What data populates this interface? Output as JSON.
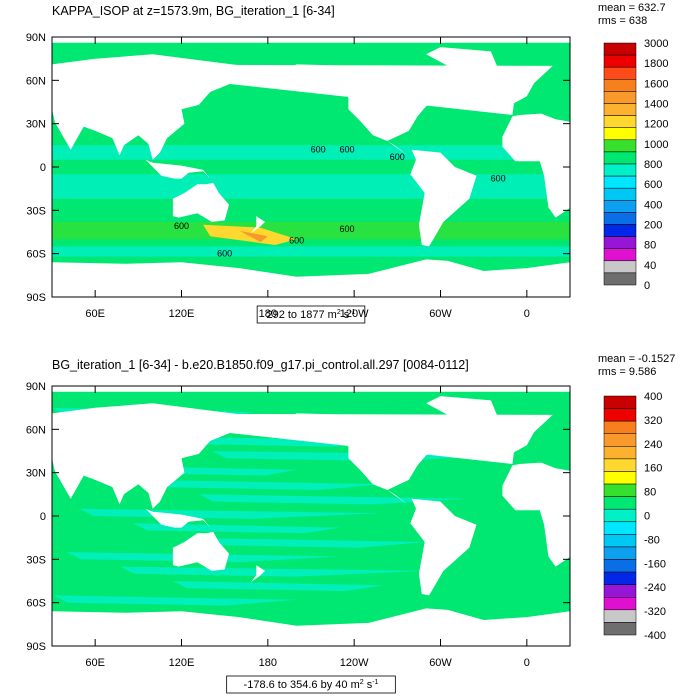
{
  "chart_data": [
    {
      "type": "heatmap",
      "title": "KAPPA_ISOP at z=1573.9m, BG_iteration_1 [6-34]",
      "stats": [
        "mean = 632.7",
        "rms = 638"
      ],
      "range_label": "292 to 1877",
      "range_units": "m",
      "x_ticks": [
        "60E",
        "120E",
        "180",
        "120W",
        "60W",
        "0"
      ],
      "y_ticks": [
        "90N",
        "60N",
        "30N",
        "0",
        "30S",
        "60S",
        "90S"
      ],
      "contour_labels": [
        "600",
        "600",
        "600",
        "600",
        "600",
        "600",
        "600",
        "600"
      ],
      "colorbar": {
        "labels": [
          "3000",
          "1800",
          "1600",
          "1400",
          "1200",
          "1000",
          "800",
          "600",
          "400",
          "200",
          "80",
          "40",
          "0"
        ],
        "colors": [
          "#c80000",
          "#ee0000",
          "#ff4a1a",
          "#f77f1e",
          "#f9982b",
          "#fdb22f",
          "#ffd82f",
          "#ffff00",
          "#38e02e",
          "#00e871",
          "#00f0c8",
          "#00e6ff",
          "#00c8f5",
          "#0ea0f0",
          "#0a6ee6",
          "#0028e6",
          "#9615d6",
          "#e010d0",
          "#c8c8c8",
          "#6e6e6e"
        ]
      },
      "colors": {
        "ocean": "#00e871",
        "ocean_alt": "#00f0c8",
        "land": "#ffffff"
      }
    },
    {
      "type": "heatmap",
      "title": "BG_iteration_1 [6-34] - b.e20.B1850.f09_g17.pi_control.all.297 [0084-0112]",
      "stats": [
        "mean = -0.1527",
        "rms = 9.586"
      ],
      "range_label": "-178.6 to 354.6 by 40",
      "range_units": "m",
      "x_ticks": [
        "60E",
        "120E",
        "180",
        "120W",
        "60W",
        "0"
      ],
      "y_ticks": [
        "90N",
        "60N",
        "30N",
        "0",
        "30S",
        "60S",
        "90S"
      ],
      "colorbar": {
        "labels": [
          "400",
          "320",
          "240",
          "160",
          "80",
          "0",
          "-80",
          "-160",
          "-240",
          "-320",
          "-400"
        ],
        "colors": [
          "#c80000",
          "#ee0000",
          "#f77f1e",
          "#f9982b",
          "#fdb22f",
          "#ffd82f",
          "#ffff00",
          "#38e02e",
          "#00e871",
          "#00f0c8",
          "#00e6ff",
          "#00c8f5",
          "#0ea0f0",
          "#0a6ee6",
          "#0028e6",
          "#9615d6",
          "#e010d0",
          "#c8c8c8",
          "#6e6e6e"
        ]
      },
      "colors": {
        "ocean": "#00e871",
        "ocean_alt": "#00f0c8",
        "land": "#ffffff"
      }
    }
  ]
}
